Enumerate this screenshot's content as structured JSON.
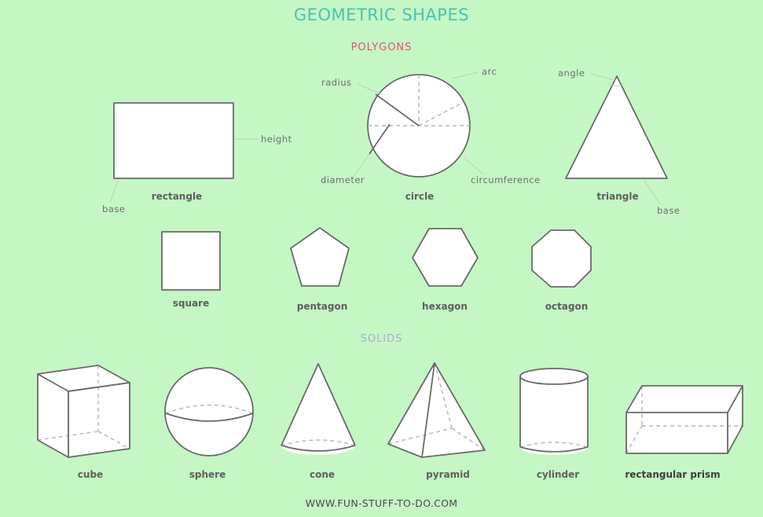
{
  "title": "GEOMETRIC SHAPES",
  "sections": {
    "polygons": "POLYGONS",
    "solids": "SOLIDS"
  },
  "colors": {
    "background": "#c4f7c4",
    "title": "#4ec2b2",
    "polygons_heading": "#e8527a",
    "solids_heading": "#b2a6da",
    "shape_fill": "#ffffff",
    "outline": "#6a6a6a",
    "hidden_edge": "#b5b5b5"
  },
  "labels": {
    "rectangle": "rectangle",
    "circle": "circle",
    "triangle": "triangle",
    "square": "square",
    "pentagon": "pentagon",
    "hexagon": "hexagon",
    "octagon": "octagon",
    "cube": "cube",
    "sphere": "sphere",
    "cone": "cone",
    "pyramid": "pyramid",
    "cylinder": "cylinder",
    "rectangular_prism": "rectangular prism"
  },
  "parts": {
    "height": "height",
    "base_rectangle": "base",
    "radius": "radius",
    "arc": "arc",
    "diameter": "diameter",
    "circumference": "circumference",
    "angle": "angle",
    "base_triangle": "base"
  },
  "footer": "WWW.FUN-STUFF-TO-DO.COM"
}
